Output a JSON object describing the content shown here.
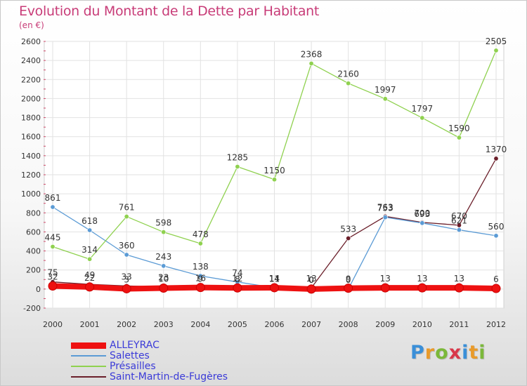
{
  "header": {
    "title": "Evolution du Montant de la Dette par Habitant",
    "subtitle": "(en €)"
  },
  "logo": {
    "text": "Proxiti",
    "letters": [
      "P",
      "r",
      "o",
      "x",
      "i",
      "t",
      "i"
    ]
  },
  "colors": {
    "title": "#c83c78",
    "legend_text": "#3b3bd8",
    "axis_text": "#333333",
    "grid": "#e2e2e2"
  },
  "chart_data": {
    "type": "line",
    "x": [
      "2000",
      "2001",
      "2002",
      "2003",
      "2004",
      "2005",
      "2006",
      "2007",
      "2008",
      "2009",
      "2010",
      "2011",
      "2012"
    ],
    "ylim": [
      -200,
      2600
    ],
    "yticks": [
      -200,
      0,
      200,
      400,
      600,
      800,
      1000,
      1200,
      1400,
      1600,
      1800,
      2000,
      2200,
      2400,
      2600
    ],
    "grid": true,
    "legend_position": "bottom-left",
    "series": [
      {
        "name": "ALLEYRAC",
        "color": "#ee1111",
        "values": [
          32,
          22,
          3,
          10,
          16,
          12,
          14,
          0,
          9,
          13,
          13,
          13,
          6
        ],
        "labels": [
          "32",
          "22",
          "3",
          "10",
          "16",
          "12",
          "14",
          "0",
          "9",
          "13",
          "13",
          "13",
          "6"
        ]
      },
      {
        "name": "Salettes",
        "color": "#5b9bd5",
        "values": [
          861,
          618,
          360,
          243,
          138,
          74,
          14,
          0,
          0,
          753,
          693,
          621,
          560
        ],
        "labels": [
          "861",
          "618",
          "360",
          "243",
          "138",
          "74",
          "14",
          "0",
          "0",
          "753",
          "693",
          "621",
          "560"
        ]
      },
      {
        "name": "Présailles",
        "color": "#8fd14f",
        "values": [
          445,
          314,
          761,
          598,
          478,
          1285,
          1150,
          2368,
          2160,
          1997,
          1797,
          1590,
          2505
        ],
        "labels": [
          "445",
          "314",
          "761",
          "598",
          "478",
          "1285",
          "1150",
          "2368",
          "2160",
          "1997",
          "1797",
          "1590",
          "2505"
        ]
      },
      {
        "name": "Saint-Martin-de-Fugères",
        "color": "#6b1f2a",
        "values": [
          75,
          49,
          33,
          23,
          9,
          8,
          11,
          13,
          533,
          763,
          700,
          670,
          1370
        ],
        "labels": [
          "75",
          "49",
          "33",
          "23",
          "9",
          "8",
          "11",
          "13",
          "533",
          "763",
          "700",
          "670",
          "1370"
        ]
      }
    ]
  }
}
